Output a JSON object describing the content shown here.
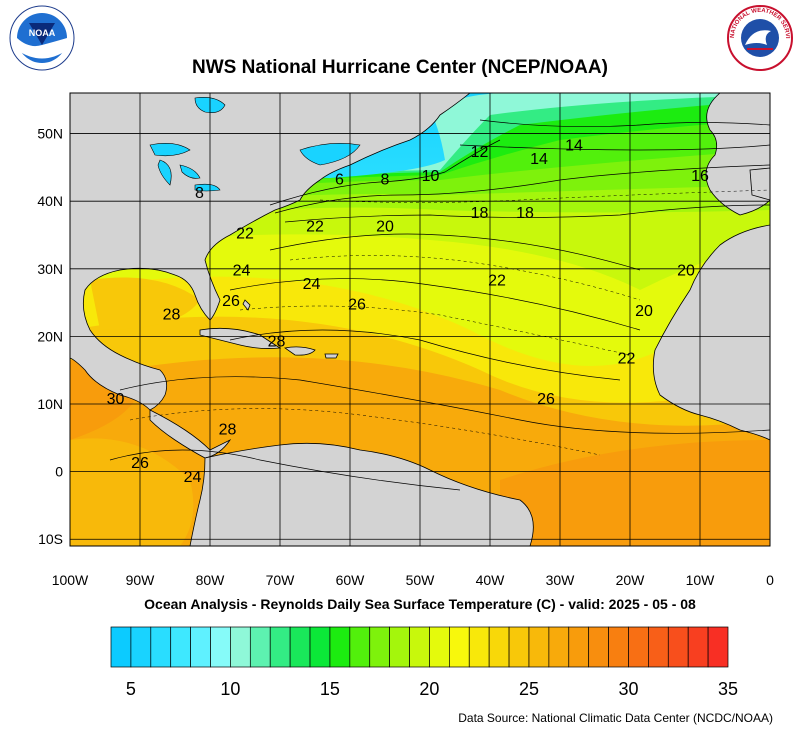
{
  "header": {
    "title": "NWS National Hurricane Center (NCEP/NOAA)",
    "noaa_logo_text": "NOAA",
    "nws_logo_text": "NATIONAL WEATHER SERVICE"
  },
  "map": {
    "lon_ticks": [
      "100W",
      "90W",
      "80W",
      "70W",
      "60W",
      "50W",
      "40W",
      "30W",
      "20W",
      "10W",
      "0"
    ],
    "lat_ticks": [
      "50N",
      "40N",
      "30N",
      "20N",
      "10N",
      "0",
      "10S"
    ],
    "contour_labels": [
      {
        "text": "8",
        "lon": -81.5,
        "lat": 40.5
      },
      {
        "text": "6",
        "lon": -61.5,
        "lat": 42.5
      },
      {
        "text": "8",
        "lon": -55,
        "lat": 42.5
      },
      {
        "text": "10",
        "lon": -48.5,
        "lat": 43
      },
      {
        "text": "12",
        "lon": -41.5,
        "lat": 46.5
      },
      {
        "text": "14",
        "lon": -33,
        "lat": 45.5
      },
      {
        "text": "14",
        "lon": -28,
        "lat": 47.5
      },
      {
        "text": "16",
        "lon": -10,
        "lat": 43
      },
      {
        "text": "18",
        "lon": -41.5,
        "lat": 37.5
      },
      {
        "text": "18",
        "lon": -35,
        "lat": 37.5
      },
      {
        "text": "20",
        "lon": -55,
        "lat": 35.5
      },
      {
        "text": "22",
        "lon": -65,
        "lat": 35.5
      },
      {
        "text": "22",
        "lon": -75,
        "lat": 34.5
      },
      {
        "text": "24",
        "lon": -75.5,
        "lat": 29
      },
      {
        "text": "24",
        "lon": -65.5,
        "lat": 27
      },
      {
        "text": "22",
        "lon": -39,
        "lat": 27.5
      },
      {
        "text": "20",
        "lon": -12,
        "lat": 29
      },
      {
        "text": "20",
        "lon": -18,
        "lat": 23
      },
      {
        "text": "26",
        "lon": -77,
        "lat": 24.5
      },
      {
        "text": "26",
        "lon": -59,
        "lat": 24
      },
      {
        "text": "28",
        "lon": -85.5,
        "lat": 22.5
      },
      {
        "text": "28",
        "lon": -70.5,
        "lat": 18.5
      },
      {
        "text": "22",
        "lon": -20.5,
        "lat": 16
      },
      {
        "text": "26",
        "lon": -32,
        "lat": 10
      },
      {
        "text": "30",
        "lon": -93.5,
        "lat": 10
      },
      {
        "text": "28",
        "lon": -77.5,
        "lat": 5.5
      },
      {
        "text": "26",
        "lon": -90,
        "lat": 0.5
      },
      {
        "text": "24",
        "lon": -82.5,
        "lat": -1.5
      }
    ]
  },
  "caption": "Ocean Analysis - Reynolds Daily Sea Surface Temperature (C) - valid: 2025 - 05 - 08",
  "colorbar": {
    "labels": [
      "5",
      "10",
      "15",
      "20",
      "25",
      "30",
      "35"
    ],
    "colors": [
      "#0ccbff",
      "#19d3ff",
      "#29ddff",
      "#3ee8ff",
      "#5ff1ff",
      "#86fbf9",
      "#8ff8d8",
      "#5df2b0",
      "#33ec84",
      "#19e85a",
      "#0be838",
      "#1cec10",
      "#52f00c",
      "#7ef20c",
      "#a4f60c",
      "#c8f80c",
      "#e4fa0c",
      "#f8f80c",
      "#f8e80a",
      "#f8d809",
      "#f8c809",
      "#f8b90a",
      "#f8aa0b",
      "#f89c0c",
      "#f88e0e",
      "#f87f10",
      "#f86f14",
      "#f85f18",
      "#f84f1c",
      "#f83f20",
      "#f82f24"
    ]
  },
  "footer": {
    "source": "Data Source: National Climatic Data Center (NCDC/NOAA)"
  }
}
